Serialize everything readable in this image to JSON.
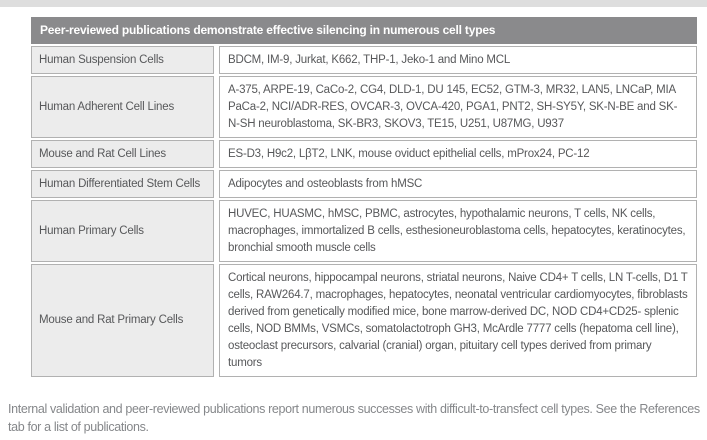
{
  "page": {
    "background": "#ffffff",
    "top_strip_color": "#dedede"
  },
  "table": {
    "title": "Peer-reviewed publications demonstrate effective silencing in numerous cell types",
    "header_bg": "#8a8a8c",
    "header_text_color": "#ffffff",
    "label_cell_bg": "#ececec",
    "border_color": "#b1b1b1",
    "rows": [
      {
        "category": "Human Suspension Cells",
        "cells": "BDCM, IM-9, Jurkat, K662, THP-1, Jeko-1 and Mino MCL"
      },
      {
        "category": "Human Adherent Cell Lines",
        "cells": "A-375, ARPE-19, CaCo-2, CG4, DLD-1, DU 145, EC52, GTM-3, MR32, LAN5, LNCaP, MIA PaCa-2, NCI/ADR-RES, OVCAR-3, OVCA-420, PGA1, PNT2, SH-SY5Y, SK-N-BE and SK-N-SH neuroblastoma, SK-BR3, SKOV3, TE15, U251, U87MG, U937"
      },
      {
        "category": "Mouse and Rat Cell Lines",
        "cells": "ES-D3, H9c2, LβT2, LNK, mouse oviduct epithelial cells, mProx24, PC-12"
      },
      {
        "category": "Human Differentiated Stem Cells",
        "cells": "Adipocytes and osteoblasts from hMSC"
      },
      {
        "category": "Human Primary Cells",
        "cells": "HUVEC, HUASMC, hMSC, PBMC, astrocytes, hypothalamic neurons, T cells, NK cells, macrophages, immortalized B cells, esthesioneuroblastoma cells, hepatocytes, keratinocytes, bronchial smooth muscle cells"
      },
      {
        "category": "Mouse and Rat Primary Cells",
        "cells": "Cortical neurons, hippocampal neurons, striatal neurons, Naive CD4+ T cells, LN T-cells, D1 T cells, RAW264.7, macrophages, hepatocytes, neonatal ventricular cardiomyocytes, fibroblasts derived from genetically modified mice, bone marrow-derived DC, NOD CD4+CD25- splenic cells, NOD BMMs, VSMCs, somatolactotroph GH3, McArdle 7777 cells (hepatoma cell line), osteoclast precursors, calvarial (cranial) organ, pituitary cell types derived from primary tumors"
      }
    ]
  },
  "footnote": "Internal validation and peer-reviewed publications report numerous successes with difficult-to-transfect cell types. See the References tab for a list of publications."
}
